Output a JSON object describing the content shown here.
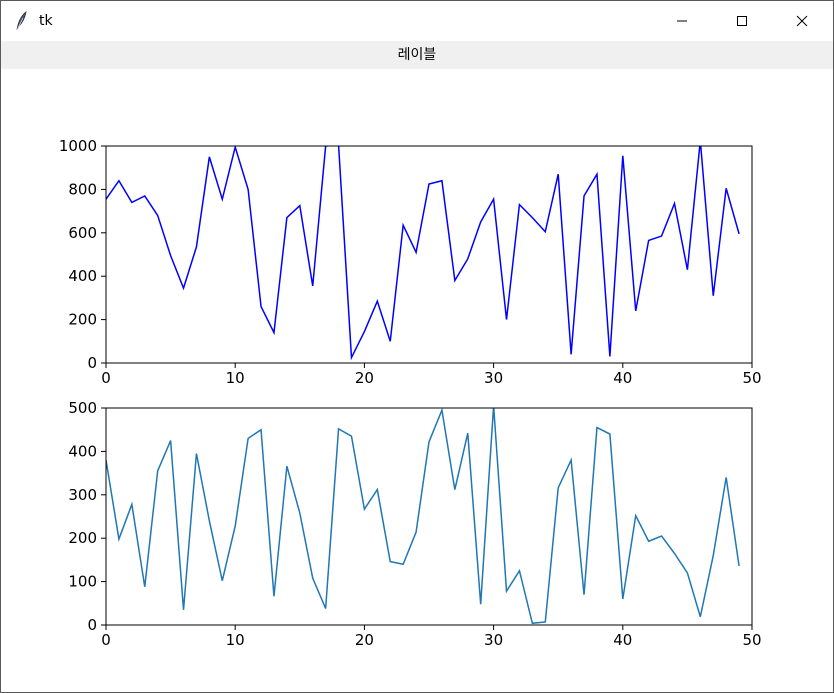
{
  "window": {
    "title": "tk",
    "icon": "feather-icon",
    "controls": [
      "minimize-icon",
      "maximize-icon",
      "close-icon"
    ]
  },
  "label": {
    "text": "레이블"
  },
  "chart_data": [
    {
      "type": "line",
      "color": "#0000ff",
      "xlim": [
        0,
        50
      ],
      "ylim": [
        0,
        1000
      ],
      "xticks": [
        "0",
        "10",
        "20",
        "30",
        "40",
        "50"
      ],
      "yticks": [
        "0",
        "200",
        "400",
        "600",
        "800",
        "1000"
      ],
      "x": [
        0,
        1,
        2,
        3,
        4,
        5,
        6,
        7,
        8,
        9,
        10,
        11,
        12,
        13,
        14,
        15,
        16,
        17,
        18,
        19,
        20,
        21,
        22,
        23,
        24,
        25,
        26,
        27,
        28,
        29,
        30,
        31,
        32,
        33,
        34,
        35,
        36,
        37,
        38,
        39,
        40,
        41,
        42,
        43,
        44,
        45,
        46,
        47,
        48,
        49
      ],
      "y": [
        755,
        840,
        740,
        770,
        680,
        495,
        345,
        535,
        950,
        755,
        995,
        800,
        260,
        140,
        670,
        725,
        355,
        1000,
        1005,
        25,
        145,
        285,
        100,
        635,
        510,
        825,
        840,
        380,
        480,
        650,
        755,
        200,
        730,
        670,
        605,
        870,
        40,
        770,
        870,
        30,
        955,
        240,
        565,
        585,
        735,
        430,
        1025,
        310,
        805,
        595
      ]
    },
    {
      "type": "line",
      "color": "#1f77b4",
      "xlim": [
        0,
        50
      ],
      "ylim": [
        0,
        500
      ],
      "xticks": [
        "0",
        "10",
        "20",
        "30",
        "40",
        "50"
      ],
      "yticks": [
        "0",
        "100",
        "200",
        "300",
        "400",
        "500"
      ],
      "x": [
        0,
        1,
        2,
        3,
        4,
        5,
        6,
        7,
        8,
        9,
        10,
        11,
        12,
        13,
        14,
        15,
        16,
        17,
        18,
        19,
        20,
        21,
        22,
        23,
        24,
        25,
        26,
        27,
        28,
        29,
        30,
        31,
        32,
        33,
        34,
        35,
        36,
        37,
        38,
        39,
        40,
        41,
        42,
        43,
        44,
        45,
        46,
        47,
        48,
        49
      ],
      "y": [
        380,
        198,
        278,
        88,
        355,
        425,
        35,
        395,
        240,
        102,
        228,
        430,
        450,
        66,
        366,
        258,
        108,
        38,
        452,
        435,
        267,
        312,
        146,
        140,
        214,
        422,
        495,
        312,
        442,
        48,
        505,
        78,
        125,
        4,
        7,
        316,
        380,
        70,
        455,
        440,
        60,
        252,
        193,
        205,
        165,
        120,
        19,
        160,
        340,
        136
      ]
    }
  ]
}
